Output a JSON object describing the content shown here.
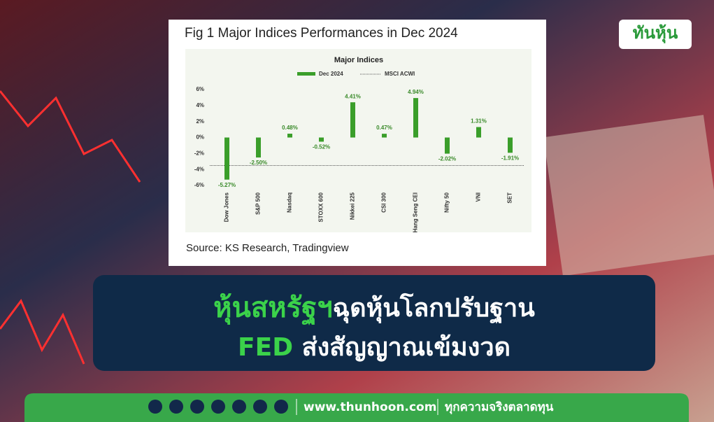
{
  "chart_data": {
    "type": "bar",
    "figure_title": "Fig 1 Major Indices Performances in Dec 2024",
    "title": "Major Indices",
    "categories": [
      "Dow Jones",
      "S&P 500",
      "Nasdaq",
      "STOXX 600",
      "Nikkei 225",
      "CSI 300",
      "Hang Seng CEI",
      "Nifty 50",
      "VNI",
      "SET"
    ],
    "series": [
      {
        "name": "Dec 2024",
        "color": "#3a9e2a",
        "values": [
          -5.27,
          -2.5,
          0.48,
          -0.52,
          4.41,
          0.47,
          4.94,
          -2.02,
          1.31,
          -1.91
        ],
        "value_labels": [
          "-5.27%",
          "-2.50%",
          "0.48%",
          "-0.52%",
          "4.41%",
          "0.47%",
          "4.94%",
          "-2.02%",
          "1.31%",
          "-1.91%"
        ]
      }
    ],
    "reference_line": {
      "name": "MSCI ACWI",
      "value": -3.5,
      "color": "#555555"
    },
    "ylim": [
      -6,
      6
    ],
    "yticks": [
      {
        "value": 6,
        "label": "6%"
      },
      {
        "value": 4,
        "label": "4%"
      },
      {
        "value": 2,
        "label": "2%"
      },
      {
        "value": 0,
        "label": "0%"
      },
      {
        "value": -2,
        "label": "-2%"
      },
      {
        "value": -4,
        "label": "-4%"
      },
      {
        "value": -6,
        "label": "-6%"
      }
    ],
    "grid": false,
    "source": "Source: KS Research, Tradingview"
  },
  "brand": "ทันหุ้น",
  "headline": {
    "line1_highlight": "หุ้นสหรัฐฯ",
    "line1_rest": "ฉุดหุ้นโลกปรับฐาน",
    "line2_highlight": "FED",
    "line2_rest": " ส่งสัญญาณเข้มงวด"
  },
  "footer": {
    "website": "www.thunhoon.com",
    "slogan": "ทุกความจริงตลาดทุน"
  }
}
